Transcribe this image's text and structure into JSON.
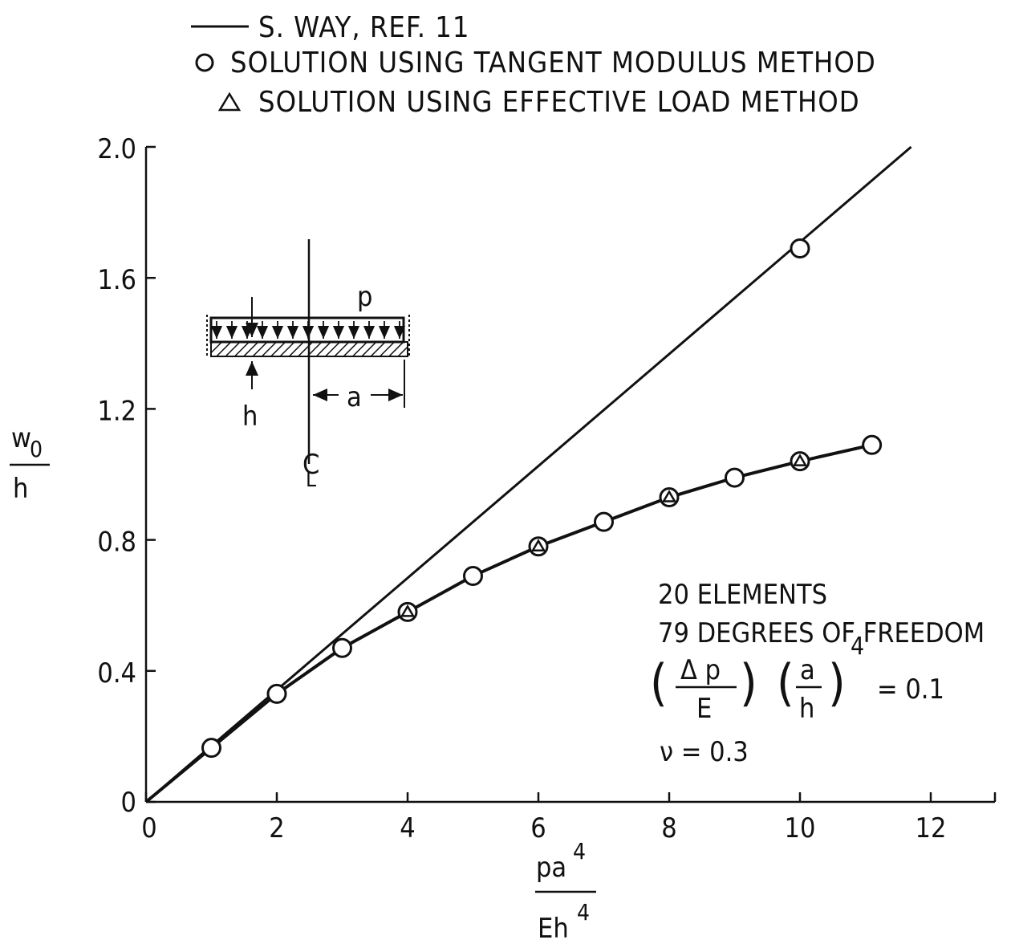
{
  "chart_data": {
    "type": "line",
    "title": "",
    "xlabel": {
      "numerator": "pa",
      "numerator_sup": "4",
      "denominator": "Eh",
      "denominator_sup": "4"
    },
    "ylabel": {
      "numerator": "w",
      "numerator_sub": "0",
      "denominator": "h"
    },
    "xlim": [
      0,
      13
    ],
    "ylim": [
      0,
      2.0
    ],
    "x_ticks": [
      0,
      2,
      4,
      6,
      8,
      10,
      12
    ],
    "x_tick_labels": [
      "0",
      "2",
      "4",
      "6",
      "8",
      "10",
      "12"
    ],
    "y_ticks": [
      0,
      0.4,
      0.8,
      1.2,
      1.6,
      2.0
    ],
    "y_tick_labels": [
      "0",
      "0.4",
      "0.8",
      "1.2",
      "1.6",
      "2.0"
    ],
    "grid": false,
    "legend_position": "top-left",
    "series": [
      {
        "name": "S. WAY, REF. 11",
        "marker": "line",
        "x": [
          0,
          11.7
        ],
        "y": [
          0,
          2.0
        ]
      },
      {
        "name": "SOLUTION USING TANGENT MODULUS METHOD",
        "marker": "circle",
        "x": [
          1,
          2,
          3,
          4,
          5,
          6,
          7,
          8,
          9,
          10,
          11.1,
          10
        ],
        "y": [
          0.165,
          0.33,
          0.47,
          0.58,
          0.69,
          0.78,
          0.855,
          0.93,
          0.99,
          1.04,
          1.09,
          1.69
        ]
      },
      {
        "name": "SOLUTION USING EFFECTIVE LOAD METHOD",
        "marker": "triangle",
        "x": [
          4,
          6,
          8,
          10
        ],
        "y": [
          0.58,
          0.78,
          0.93,
          1.04
        ]
      }
    ],
    "annotations": {
      "elements": "20 ELEMENTS",
      "dof": "79 DEGREES OF FREEDOM",
      "load_delta_p": "Δ p",
      "load_E": "E",
      "load_a": "a",
      "load_h": "h",
      "load_exp": "4",
      "load_value": "= 0.1",
      "poisson": "ν = 0.3"
    },
    "inset": {
      "p": "p",
      "h": "h",
      "a": "a",
      "cl": "C",
      "cl_sub": "L"
    }
  }
}
